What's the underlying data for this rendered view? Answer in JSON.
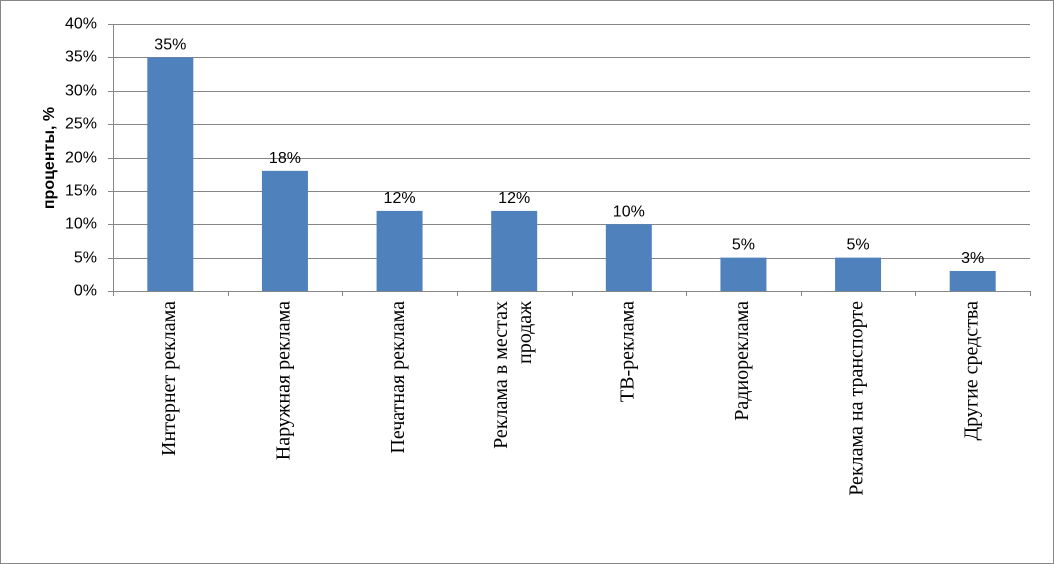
{
  "chart_data": {
    "type": "bar",
    "title": "",
    "xlabel": "",
    "ylabel": "проценты, %",
    "ylim": [
      0,
      40
    ],
    "y_ticks": [
      "0%",
      "5%",
      "10%",
      "15%",
      "20%",
      "25%",
      "30%",
      "35%",
      "40%"
    ],
    "categories": [
      [
        "Интернет реклама"
      ],
      [
        "Наружная реклама"
      ],
      [
        "Печатная реклама"
      ],
      [
        "Реклама в местах",
        "продаж"
      ],
      [
        "ТВ-реклама"
      ],
      [
        "Радиореклама"
      ],
      [
        "Реклама на транспорте"
      ],
      [
        "Другие средства"
      ]
    ],
    "values": [
      35,
      18,
      12,
      12,
      10,
      5,
      5,
      3
    ],
    "data_labels": [
      "35%",
      "18%",
      "12%",
      "12%",
      "10%",
      "5%",
      "5%",
      "3%"
    ],
    "grid": true,
    "legend": "none",
    "bar_color": "#4F81BD",
    "grid_color": "#868686"
  }
}
